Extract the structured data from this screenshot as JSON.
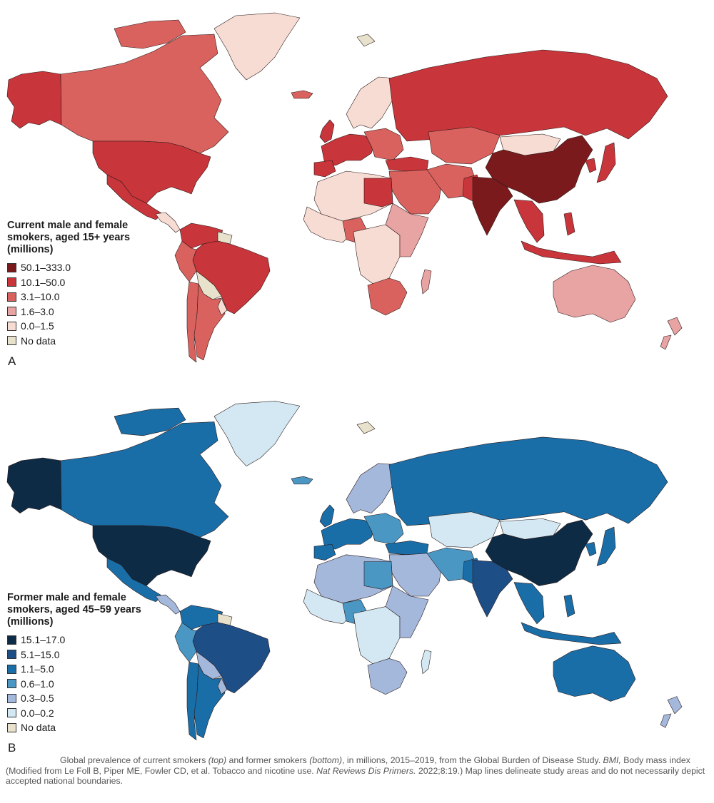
{
  "colors": {
    "red_50_333": "#7a1a1c",
    "red_10_50": "#c8353a",
    "red_3_10": "#d9625e",
    "red_1_6_3": "#e8a3a3",
    "red_0_1_5": "#f7dcd3",
    "blue_15_17": "#0d2b45",
    "blue_5_15": "#1e4e86",
    "blue_1_5": "#1a6ea8",
    "blue_0_6_1": "#4a97c4",
    "blue_0_3_0_5": "#a4b8dc",
    "blue_0_0_2": "#d3e8f2",
    "no_data": "#e8e2cc"
  },
  "panel_a": {
    "letter": "A",
    "legend_title": "Current male and female smokers, aged 15+ years (millions)",
    "legend": [
      {
        "label": "50.1–333.0",
        "color": "#7a1a1c"
      },
      {
        "label": "10.1–50.0",
        "color": "#c8353a"
      },
      {
        "label": "3.1–10.0",
        "color": "#d9625e"
      },
      {
        "label": "1.6–3.0",
        "color": "#e8a3a3"
      },
      {
        "label": "0.0–1.5",
        "color": "#f7dcd3"
      },
      {
        "label": "No data",
        "color": "#e8e2cc"
      }
    ]
  },
  "panel_b": {
    "letter": "B",
    "legend_title": "Former male and female smokers, aged 45–59 years (millions)",
    "legend": [
      {
        "label": "15.1–17.0",
        "color": "#0d2b45"
      },
      {
        "label": "5.1–15.0",
        "color": "#1e4e86"
      },
      {
        "label": "1.1–5.0",
        "color": "#1a6ea8"
      },
      {
        "label": "0.6–1.0",
        "color": "#4a97c4"
      },
      {
        "label": "0.3–0.5",
        "color": "#a4b8dc"
      },
      {
        "label": "0.0–0.2",
        "color": "#d3e8f2"
      },
      {
        "label": "No data",
        "color": "#e8e2cc"
      }
    ]
  },
  "caption": {
    "part1": "Global prevalence of current smokers ",
    "top": "(top)",
    "part2": " and former smokers ",
    "bottom": "(bottom)",
    "part3": ", in millions, 2015–2019, from the Global Burden of Disease Study. ",
    "bmi": "BMI,",
    "part4": " Body mass index (Modified from Le Foll B, Piper ME, Fowler CD, et al. Tobacco and nicotine use. ",
    "journal": "Nat Reviews Dis Primers.",
    "part5": " 2022;8:19.) Map lines delineate study areas and do not necessarily depict accepted national boundaries."
  }
}
